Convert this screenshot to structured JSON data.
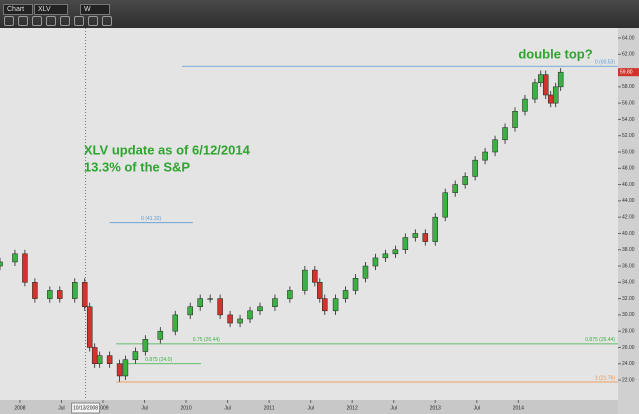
{
  "toolbar": {
    "window": "Chart",
    "symbol": "XLV",
    "period": "W"
  },
  "chart_data": {
    "type": "candlestick",
    "x": [
      2007.76,
      2007.94,
      2008.06,
      2008.18,
      2008.36,
      2008.48,
      2008.66,
      2008.78,
      2008.84,
      2008.9,
      2008.96,
      2009.08,
      2009.2,
      2009.27,
      2009.39,
      2009.51,
      2009.69,
      2009.87,
      2010.05,
      2010.17,
      2010.29,
      2010.41,
      2010.53,
      2010.65,
      2010.77,
      2010.89,
      2011.07,
      2011.25,
      2011.43,
      2011.55,
      2011.61,
      2011.67,
      2011.8,
      2011.92,
      2012.04,
      2012.16,
      2012.28,
      2012.4,
      2012.52,
      2012.64,
      2012.76,
      2012.88,
      2013.0,
      2013.12,
      2013.24,
      2013.36,
      2013.48,
      2013.6,
      2013.72,
      2013.84,
      2013.96,
      2014.08,
      2014.2,
      2014.27,
      2014.33,
      2014.39,
      2014.45,
      2014.51
    ],
    "open": [
      36,
      36.5,
      37.5,
      34,
      32,
      33,
      32,
      34,
      31,
      26,
      24,
      25,
      24,
      22.5,
      24.5,
      25.5,
      27,
      28,
      30,
      31,
      32,
      32,
      30,
      29,
      29.5,
      30.5,
      31,
      32,
      33,
      35.5,
      34,
      32,
      30.5,
      32,
      33,
      34.5,
      36,
      37,
      37.5,
      38,
      39.5,
      40,
      39,
      42,
      45,
      46,
      47,
      49,
      50,
      51.5,
      53,
      55,
      56.5,
      58.5,
      59.5,
      57,
      56,
      58
    ],
    "high": [
      37,
      38,
      38,
      34.5,
      33.5,
      33.5,
      34.5,
      34.5,
      31.5,
      26.5,
      25.5,
      25.5,
      24.5,
      25,
      26,
      27.5,
      28.5,
      30.5,
      31.5,
      32.5,
      32.5,
      32.5,
      30.5,
      30,
      31,
      31.5,
      32.5,
      33.5,
      36,
      36,
      34.5,
      32.5,
      32.5,
      33.5,
      35,
      36.5,
      37.5,
      38,
      38.5,
      40,
      40.5,
      40.5,
      42.5,
      45.5,
      46.5,
      47.5,
      49.5,
      50.5,
      52,
      53.5,
      55.5,
      57,
      59,
      60,
      60,
      57.5,
      58.5,
      60.3
    ],
    "low": [
      35.5,
      36,
      33.5,
      31.5,
      31.5,
      31.5,
      31.5,
      30.5,
      25.5,
      23.5,
      23.5,
      23.5,
      21.8,
      22,
      24,
      25,
      26.5,
      27.5,
      29.5,
      30.5,
      31.5,
      29.5,
      28.5,
      28.5,
      29,
      30,
      30.5,
      31.5,
      32.5,
      33.5,
      31.5,
      30,
      30,
      31.5,
      32.5,
      34,
      35.5,
      36.5,
      37,
      37.5,
      39,
      38.5,
      38.5,
      41.5,
      44.5,
      45.5,
      46.5,
      48.5,
      49.5,
      51,
      52.5,
      54.5,
      56,
      58,
      56.5,
      55.5,
      55.5,
      57.5
    ],
    "close": [
      36.5,
      37.5,
      34,
      32,
      33,
      32,
      34,
      31,
      26,
      24,
      25,
      24,
      22.5,
      24.5,
      25.5,
      27,
      28,
      30,
      31,
      32,
      32,
      30,
      29,
      29.5,
      30.5,
      31,
      32,
      33,
      35.5,
      34,
      32,
      30.5,
      32,
      33,
      34.5,
      36,
      37,
      37.5,
      38,
      39.5,
      40,
      39,
      42,
      45,
      46,
      47,
      49,
      50,
      51.5,
      53,
      55,
      56.5,
      58.5,
      59.5,
      57,
      56,
      58,
      59.8
    ],
    "up_color": "#3cb043",
    "down_color": "#d0342c",
    "last_price": {
      "value": 59.8,
      "label": "59.80"
    },
    "xlim": [
      2007.76,
      2015.2
    ],
    "ylim": [
      19.55,
      64.98
    ],
    "xticks": [
      {
        "value": 2008,
        "label": "2008"
      },
      {
        "value": 2008.5,
        "label": "Jul"
      },
      {
        "value": 2009,
        "label": "2009"
      },
      {
        "value": 2009.5,
        "label": "Jul"
      },
      {
        "value": 2010,
        "label": "2010"
      },
      {
        "value": 2010.5,
        "label": "Jul"
      },
      {
        "value": 2011,
        "label": "2011"
      },
      {
        "value": 2011.5,
        "label": "Jul"
      },
      {
        "value": 2012,
        "label": "2012"
      },
      {
        "value": 2012.5,
        "label": "Jul"
      },
      {
        "value": 2013,
        "label": "2013"
      },
      {
        "value": 2013.5,
        "label": "Jul"
      },
      {
        "value": 2014,
        "label": "2014"
      }
    ],
    "yticks": [
      {
        "value": 22,
        "label": "22.00"
      },
      {
        "value": 24,
        "label": "24.00"
      },
      {
        "value": 26,
        "label": "26.00"
      },
      {
        "value": 28,
        "label": "28.00"
      },
      {
        "value": 30,
        "label": "30.00"
      },
      {
        "value": 32,
        "label": "32.00"
      },
      {
        "value": 34,
        "label": "34.00"
      },
      {
        "value": 36,
        "label": "36.00"
      },
      {
        "value": 38,
        "label": "38.00"
      },
      {
        "value": 40,
        "label": "40.00"
      },
      {
        "value": 42,
        "label": "42.00"
      },
      {
        "value": 44,
        "label": "44.00"
      },
      {
        "value": 46,
        "label": "46.00"
      },
      {
        "value": 48,
        "label": "48.00"
      },
      {
        "value": 50,
        "label": "50.00"
      },
      {
        "value": 52,
        "label": "52.00"
      },
      {
        "value": 54,
        "label": "54.00"
      },
      {
        "value": 56,
        "label": "56.00"
      },
      {
        "value": 58,
        "label": "58.00"
      },
      {
        "value": 60,
        "label": "60.00"
      },
      {
        "value": 62,
        "label": "62.00"
      },
      {
        "value": 64,
        "label": "64.00"
      }
    ],
    "crosshair": {
      "x": 2008.79,
      "label": "10/13/2008"
    },
    "levels": [
      {
        "value": 60.53,
        "label": "0 (60.53)",
        "color": "#5b9bd5",
        "from": 2009.95
      },
      {
        "value": 41.32,
        "label": "0 (41.32)",
        "color": "#5b9bd5",
        "from": 2009.08,
        "to": 2010.08
      },
      {
        "value": 26.44,
        "label": "0.875 (26.44)",
        "left_label": "0.75 (26.44)",
        "color": "#3cb043",
        "from": 2009.16
      },
      {
        "value": 24.0,
        "label": "0.875 (24.0)",
        "color": "#3cb043",
        "from": 2009.16,
        "to": 2010.18
      },
      {
        "value": 21.76,
        "label": "1 (21.76)",
        "color": "#f08a3c",
        "from": 2009.16
      }
    ],
    "annotations": [
      {
        "text": "double top?",
        "x": 2014.0,
        "y": 61.9
      },
      {
        "text": "XLV update as of 6/12/2014",
        "x": 2008.77,
        "y": 50.1
      },
      {
        "text": "13.3% of the S&P",
        "x": 2008.77,
        "y": 48.0
      }
    ]
  }
}
